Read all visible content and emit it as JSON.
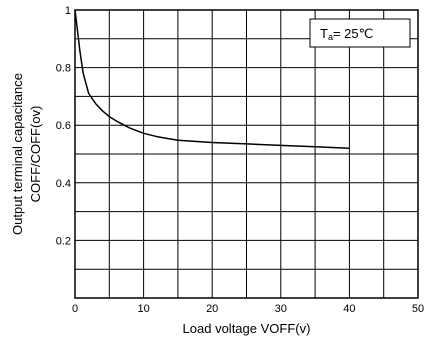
{
  "chart_data": {
    "type": "line",
    "title": "",
    "xlabel": "Load voltage VOFF(v)",
    "ylabel_lines": [
      "Output terminal capacitance",
      "COFF/COFF(ov)"
    ],
    "xlim": [
      0,
      50
    ],
    "ylim": [
      0,
      1
    ],
    "x_ticks": [
      0,
      10,
      20,
      30,
      40,
      50
    ],
    "y_ticks": [
      0.2,
      0.4,
      0.6,
      0.8,
      1
    ],
    "y_tick_labels": [
      "0.2",
      "0.4",
      "0.6",
      "0.8",
      "1"
    ],
    "x_gridlines": [
      0,
      5,
      10,
      15,
      20,
      25,
      30,
      35,
      40,
      45,
      50
    ],
    "y_gridlines": [
      0,
      0.1,
      0.2,
      0.3,
      0.4,
      0.5,
      0.6,
      0.7,
      0.8,
      0.9,
      1.0
    ],
    "grid": true,
    "legend": "none",
    "annotation": {
      "prefix": "T",
      "subscript": "a",
      "suffix": "= 25℃",
      "placement": "top-right"
    },
    "series": [
      {
        "x": [
          0,
          0.3,
          0.7,
          1.2,
          2,
          3,
          4,
          5,
          6,
          8,
          10,
          12,
          15,
          20,
          25,
          30,
          35,
          40
        ],
        "y": [
          1.0,
          0.94,
          0.86,
          0.78,
          0.71,
          0.675,
          0.65,
          0.63,
          0.615,
          0.59,
          0.572,
          0.56,
          0.548,
          0.54,
          0.535,
          0.53,
          0.525,
          0.52
        ]
      }
    ],
    "line_color": "#000000"
  }
}
